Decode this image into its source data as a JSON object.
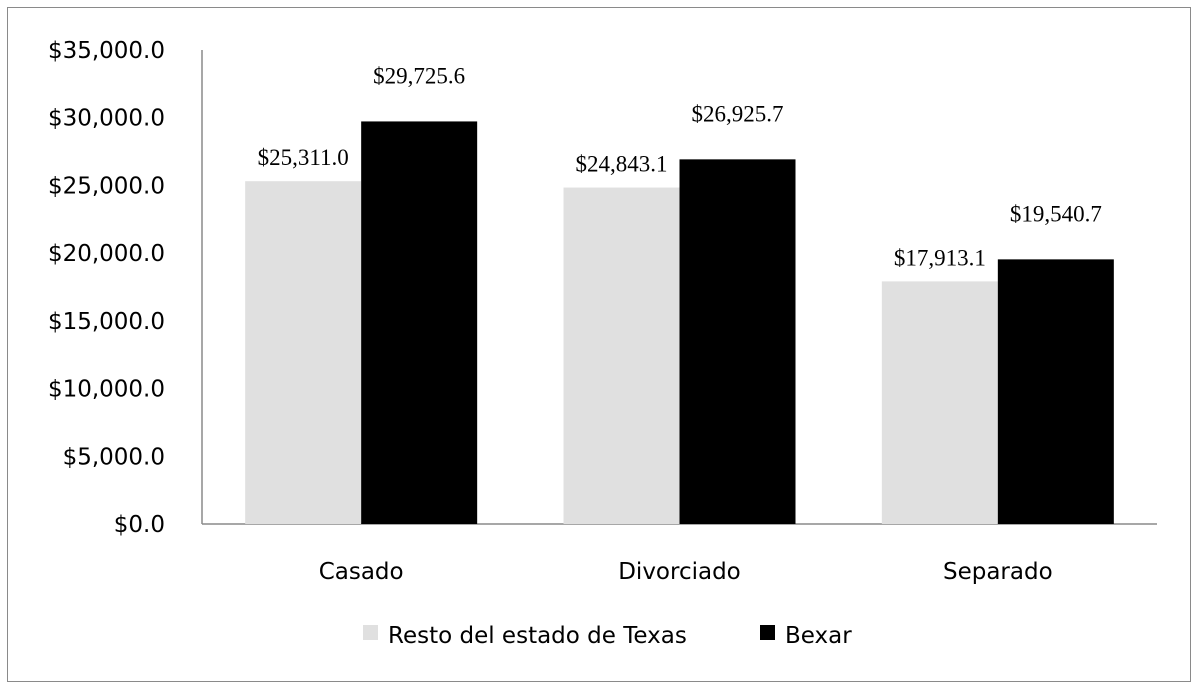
{
  "chart_data": {
    "type": "bar",
    "categories": [
      "Casado",
      "Divorciado",
      "Separado"
    ],
    "series": [
      {
        "name": "Resto del estado de Texas",
        "color": "#e0e0e0",
        "values": [
          25311.0,
          24843.1,
          17913.1
        ],
        "labels": [
          "$25,311.0",
          "$24,843.1",
          "$17,913.1"
        ]
      },
      {
        "name": "Bexar",
        "color": "#000000",
        "values": [
          29725.6,
          26925.7,
          19540.7
        ],
        "labels": [
          "$29,725.6",
          "$26,925.7",
          "$19,540.7"
        ]
      }
    ],
    "ylim": [
      0,
      35000
    ],
    "yticks": [
      0,
      5000,
      10000,
      15000,
      20000,
      25000,
      30000,
      35000
    ],
    "ytick_labels": [
      "$0.0",
      "$5,000.0",
      "$10,000.0",
      "$15,000.0",
      "$20,000.0",
      "$25,000.0",
      "$30,000.0",
      "$35,000.0"
    ],
    "title": "",
    "xlabel": "",
    "ylabel": "",
    "legend_position": "bottom",
    "grid": false
  }
}
